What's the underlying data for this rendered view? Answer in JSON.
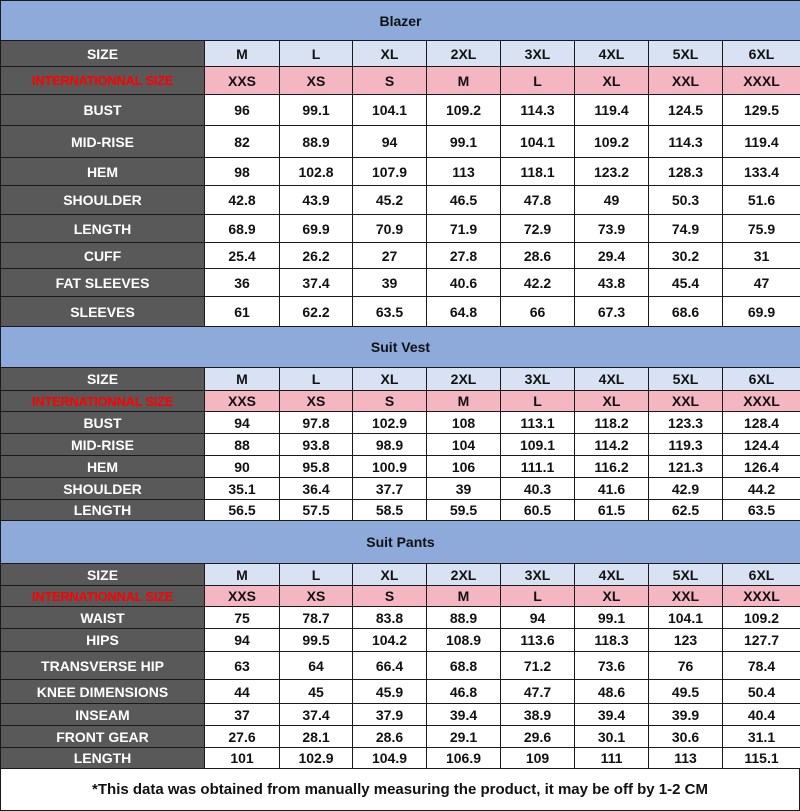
{
  "colors": {
    "title_bg": "#8eaadb",
    "label_bg": "#595959",
    "size_row_bg": "#d9e2f3",
    "intl_row_bg": "#f4b6c0",
    "intl_label": "#ff0000"
  },
  "sections": [
    {
      "title": "Blazer",
      "rows": [
        {
          "label": "SIZE",
          "values": [
            "M",
            "L",
            "XL",
            "2XL",
            "3XL",
            "4XL",
            "5XL",
            "6XL"
          ]
        },
        {
          "label": "INTERNATIONNAL SIZE",
          "values": [
            "XXS",
            "XS",
            "S",
            "M",
            "L",
            "XL",
            "XXL",
            "XXXL"
          ]
        },
        {
          "label": "BUST",
          "values": [
            "96",
            "99.1",
            "104.1",
            "109.2",
            "114.3",
            "119.4",
            "124.5",
            "129.5"
          ]
        },
        {
          "label": "MID-RISE",
          "values": [
            "82",
            "88.9",
            "94",
            "99.1",
            "104.1",
            "109.2",
            "114.3",
            "119.4"
          ]
        },
        {
          "label": "HEM",
          "values": [
            "98",
            "102.8",
            "107.9",
            "113",
            "118.1",
            "123.2",
            "128.3",
            "133.4"
          ]
        },
        {
          "label": "SHOULDER",
          "values": [
            "42.8",
            "43.9",
            "45.2",
            "46.5",
            "47.8",
            "49",
            "50.3",
            "51.6"
          ]
        },
        {
          "label": "LENGTH",
          "values": [
            "68.9",
            "69.9",
            "70.9",
            "71.9",
            "72.9",
            "73.9",
            "74.9",
            "75.9"
          ]
        },
        {
          "label": "CUFF",
          "values": [
            "25.4",
            "26.2",
            "27",
            "27.8",
            "28.6",
            "29.4",
            "30.2",
            "31"
          ]
        },
        {
          "label": "FAT SLEEVES",
          "values": [
            "36",
            "37.4",
            "39",
            "40.6",
            "42.2",
            "43.8",
            "45.4",
            "47"
          ]
        },
        {
          "label": "SLEEVES",
          "values": [
            "61",
            "62.2",
            "63.5",
            "64.8",
            "66",
            "67.3",
            "68.6",
            "69.9"
          ]
        }
      ]
    },
    {
      "title": "Suit Vest",
      "rows": [
        {
          "label": "SIZE",
          "values": [
            "M",
            "L",
            "XL",
            "2XL",
            "3XL",
            "4XL",
            "5XL",
            "6XL"
          ]
        },
        {
          "label": "INTERNATIONNAL SIZE",
          "values": [
            "XXS",
            "XS",
            "S",
            "M",
            "L",
            "XL",
            "XXL",
            "XXXL"
          ]
        },
        {
          "label": "BUST",
          "values": [
            "94",
            "97.8",
            "102.9",
            "108",
            "113.1",
            "118.2",
            "123.3",
            "128.4"
          ]
        },
        {
          "label": "MID-RISE",
          "values": [
            "88",
            "93.8",
            "98.9",
            "104",
            "109.1",
            "114.2",
            "119.3",
            "124.4"
          ]
        },
        {
          "label": "HEM",
          "values": [
            "90",
            "95.8",
            "100.9",
            "106",
            "111.1",
            "116.2",
            "121.3",
            "126.4"
          ]
        },
        {
          "label": "SHOULDER",
          "values": [
            "35.1",
            "36.4",
            "37.7",
            "39",
            "40.3",
            "41.6",
            "42.9",
            "44.2"
          ]
        },
        {
          "label": "LENGTH",
          "values": [
            "56.5",
            "57.5",
            "58.5",
            "59.5",
            "60.5",
            "61.5",
            "62.5",
            "63.5"
          ]
        }
      ]
    },
    {
      "title": "Suit Pants",
      "rows": [
        {
          "label": "SIZE",
          "values": [
            "M",
            "L",
            "XL",
            "2XL",
            "3XL",
            "4XL",
            "5XL",
            "6XL"
          ]
        },
        {
          "label": "INTERNATIONNAL SIZE",
          "values": [
            "XXS",
            "XS",
            "S",
            "M",
            "L",
            "XL",
            "XXL",
            "XXXL"
          ]
        },
        {
          "label": "WAIST",
          "values": [
            "75",
            "78.7",
            "83.8",
            "88.9",
            "94",
            "99.1",
            "104.1",
            "109.2"
          ]
        },
        {
          "label": "HIPS",
          "values": [
            "94",
            "99.5",
            "104.2",
            "108.9",
            "113.6",
            "118.3",
            "123",
            "127.7"
          ]
        },
        {
          "label": "TRANSVERSE HIP",
          "values": [
            "63",
            "64",
            "66.4",
            "68.8",
            "71.2",
            "73.6",
            "76",
            "78.4"
          ]
        },
        {
          "label": "KNEE DIMENSIONS",
          "values": [
            "44",
            "45",
            "45.9",
            "46.8",
            "47.7",
            "48.6",
            "49.5",
            "50.4"
          ]
        },
        {
          "label": "INSEAM",
          "values": [
            "37",
            "37.4",
            "37.9",
            "39.4",
            "38.9",
            "39.4",
            "39.9",
            "40.4"
          ]
        },
        {
          "label": "FRONT GEAR",
          "values": [
            "27.6",
            "28.1",
            "28.6",
            "29.1",
            "29.6",
            "30.1",
            "30.6",
            "31.1"
          ]
        },
        {
          "label": "LENGTH",
          "values": [
            "101",
            "102.9",
            "104.9",
            "106.9",
            "109",
            "111",
            "113",
            "115.1"
          ]
        }
      ]
    }
  ],
  "footer": "*This data was obtained from manually measuring the product, it may be off by 1-2 CM"
}
